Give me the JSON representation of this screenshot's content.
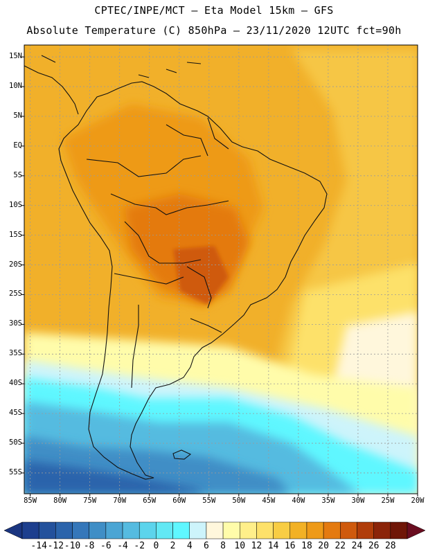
{
  "header": {
    "line1": "CPTEC/INPE/MCT –  Eta Model 15km – GFS",
    "line2": "Absolute Temperature (C) 850hPa – 23/11/2020 12UTC fct=90h"
  },
  "map": {
    "region": "South America",
    "variable": "Absolute Temperature (C) 850hPa",
    "latitude_labels": [
      "15N",
      "10N",
      "5N",
      "EQ",
      "5S",
      "10S",
      "15S",
      "20S",
      "25S",
      "30S",
      "35S",
      "40S",
      "45S",
      "50S",
      "55S"
    ],
    "longitude_labels": [
      "85W",
      "80W",
      "75W",
      "70W",
      "65W",
      "60W",
      "55W",
      "50W",
      "45W",
      "40W",
      "35W",
      "30W",
      "25W",
      "20W"
    ]
  },
  "colorbar": {
    "labels": [
      "-14",
      "-12",
      "-10",
      "-8",
      "-6",
      "-4",
      "-2",
      "0",
      "2",
      "4",
      "6",
      "8",
      "10",
      "12",
      "14",
      "16",
      "18",
      "20",
      "22",
      "24",
      "26",
      "28"
    ],
    "colors": [
      "#1d3f8e",
      "#23519c",
      "#2b64ab",
      "#3577ba",
      "#3f8ec6",
      "#4ba5d4",
      "#55bbe0",
      "#5cd4ec",
      "#62e8f4",
      "#5ff7ff",
      "#cdf4fb",
      "#fff7dc",
      "#fffcaa",
      "#ffef8a",
      "#fde16a",
      "#f8cd44",
      "#f2b125",
      "#ee9a18",
      "#e47a10",
      "#cf5a0d",
      "#b03d0a",
      "#8b2409",
      "#6f1607"
    ],
    "low_arrow_color": "#1a3580",
    "high_arrow_color": "#6a0d20"
  }
}
